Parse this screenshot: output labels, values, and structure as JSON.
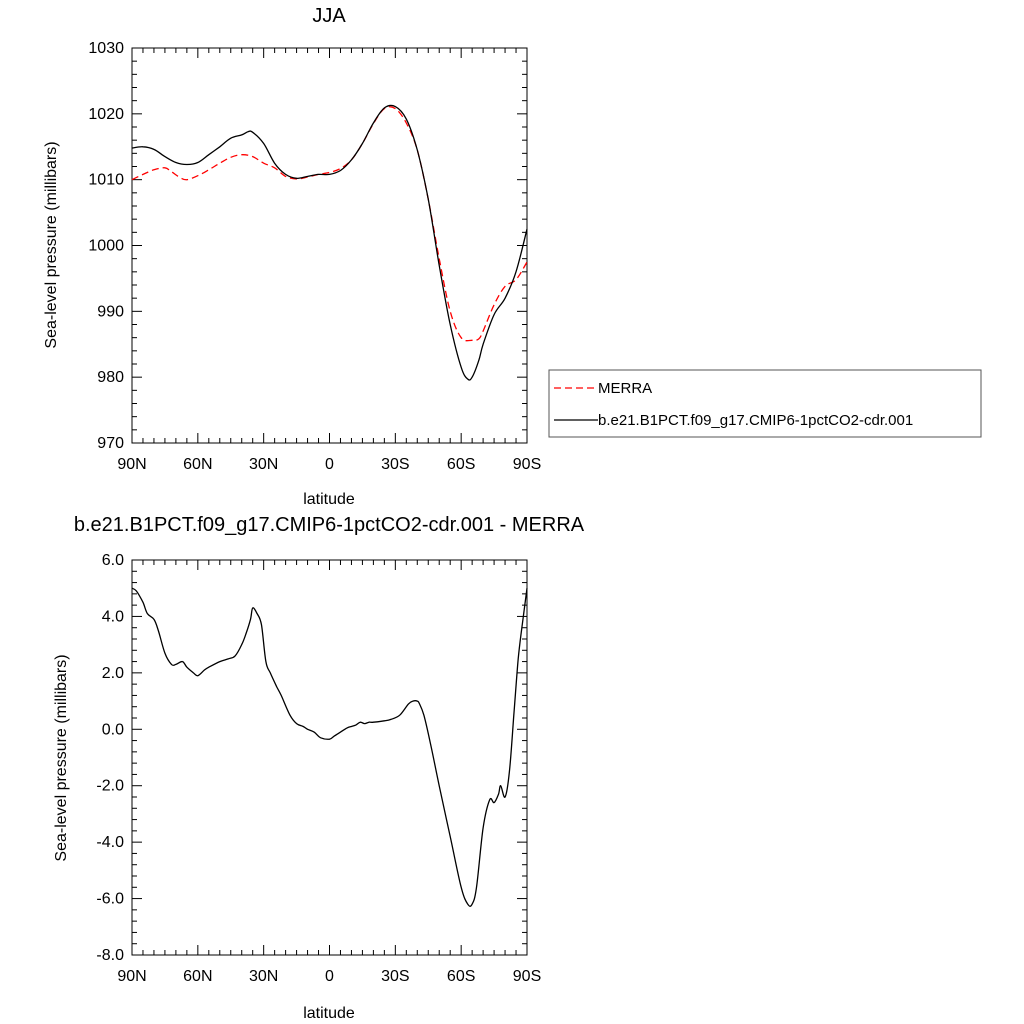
{
  "chart_data": [
    {
      "type": "line",
      "title": "JJA",
      "xlabel": "latitude",
      "ylabel": "Sea-level pressure (millibars)",
      "xlim": [
        -90,
        90
      ],
      "ylim": [
        970,
        1030
      ],
      "x_ticks": [
        -90,
        -60,
        -30,
        0,
        30,
        60,
        90
      ],
      "x_tick_labels": [
        "90N",
        "60N",
        "30N",
        "0",
        "30S",
        "60S",
        "90S"
      ],
      "y_ticks": [
        970,
        980,
        990,
        1000,
        1010,
        1020,
        1030
      ],
      "y_tick_labels": [
        "970",
        "980",
        "990",
        "1000",
        "1010",
        "1020",
        "1030"
      ],
      "legend_position": "right",
      "series": [
        {
          "name": "MERRA",
          "color": "#ff0000",
          "dash": "dashed",
          "x": [
            -90,
            -85,
            -80,
            -75,
            -72,
            -68,
            -65,
            -60,
            -55,
            -50,
            -45,
            -40,
            -35,
            -30,
            -25,
            -20,
            -15,
            -10,
            -5,
            0,
            5,
            10,
            15,
            20,
            25,
            30,
            35,
            40,
            45,
            50,
            55,
            60,
            65,
            68,
            70,
            75,
            80,
            85,
            90
          ],
          "values": [
            1010.0,
            1010.8,
            1011.5,
            1011.8,
            1011.2,
            1010.3,
            1010.0,
            1010.6,
            1011.5,
            1012.5,
            1013.4,
            1013.8,
            1013.5,
            1012.5,
            1011.8,
            1010.5,
            1010.1,
            1010.4,
            1010.8,
            1011.1,
            1011.7,
            1013.0,
            1015.5,
            1018.5,
            1020.8,
            1020.8,
            1018.6,
            1014.5,
            1007.0,
            998.0,
            990.0,
            986.0,
            985.6,
            985.8,
            987.0,
            991.0,
            993.8,
            994.8,
            997.5
          ]
        },
        {
          "name": "b.e21.B1PCT.f09_g17.CMIP6-1pctCO2-cdr.001",
          "color": "#000000",
          "dash": "solid",
          "x": [
            -90,
            -85,
            -80,
            -75,
            -70,
            -65,
            -60,
            -55,
            -50,
            -45,
            -40,
            -37,
            -35,
            -30,
            -25,
            -20,
            -15,
            -10,
            -5,
            0,
            5,
            10,
            15,
            20,
            25,
            30,
            35,
            40,
            45,
            50,
            55,
            60,
            63,
            65,
            68,
            70,
            75,
            80,
            85,
            90
          ],
          "values": [
            1014.8,
            1015.0,
            1014.6,
            1013.5,
            1012.6,
            1012.3,
            1012.6,
            1013.8,
            1015.0,
            1016.3,
            1016.8,
            1017.3,
            1017.2,
            1015.5,
            1012.5,
            1010.8,
            1010.2,
            1010.5,
            1010.8,
            1010.8,
            1011.4,
            1013.0,
            1015.5,
            1018.6,
            1020.9,
            1021.1,
            1019.2,
            1014.5,
            1007.0,
            997.0,
            988.0,
            981.5,
            979.7,
            980.0,
            982.5,
            985.0,
            989.5,
            992.0,
            996.0,
            1002.5
          ]
        }
      ]
    },
    {
      "type": "line",
      "title": "b.e21.B1PCT.f09_g17.CMIP6-1pctCO2-cdr.001 - MERRA",
      "xlabel": "latitude",
      "ylabel": "Sea-level pressure (millibars)",
      "xlim": [
        -90,
        90
      ],
      "ylim": [
        -8,
        6
      ],
      "x_ticks": [
        -90,
        -60,
        -30,
        0,
        30,
        60,
        90
      ],
      "x_tick_labels": [
        "90N",
        "60N",
        "30N",
        "0",
        "30S",
        "60S",
        "90S"
      ],
      "y_ticks": [
        -8,
        -6,
        -4,
        -2,
        0,
        2,
        4,
        6
      ],
      "y_tick_labels": [
        "-8.0",
        "-6.0",
        "-4.0",
        "-2.0",
        "0.0",
        "2.0",
        "4.0",
        "6.0"
      ],
      "series": [
        {
          "color": "#000000",
          "dash": "solid",
          "x": [
            -90,
            -88,
            -85,
            -83,
            -80,
            -78,
            -75,
            -72,
            -70,
            -67,
            -65,
            -62,
            -60,
            -57,
            -55,
            -50,
            -46,
            -43,
            -40,
            -38,
            -36,
            -35,
            -33,
            -31,
            -29,
            -27,
            -24,
            -22,
            -18,
            -15,
            -12,
            -10,
            -7,
            -4,
            0,
            2,
            5,
            8,
            10,
            12,
            14,
            16,
            18,
            20,
            25,
            28,
            32,
            36,
            38,
            40,
            41,
            43,
            46,
            50,
            55,
            60,
            63,
            65,
            67,
            70,
            73,
            75,
            77,
            78,
            80,
            82,
            84,
            86,
            88,
            90
          ],
          "values": [
            5.0,
            4.9,
            4.5,
            4.1,
            3.9,
            3.5,
            2.7,
            2.3,
            2.3,
            2.4,
            2.2,
            2.0,
            1.9,
            2.1,
            2.2,
            2.4,
            2.5,
            2.6,
            3.0,
            3.4,
            3.9,
            4.3,
            4.1,
            3.7,
            2.4,
            2.0,
            1.5,
            1.2,
            0.5,
            0.2,
            0.1,
            0.0,
            -0.1,
            -0.3,
            -0.35,
            -0.25,
            -0.1,
            0.05,
            0.1,
            0.15,
            0.25,
            0.2,
            0.25,
            0.25,
            0.3,
            0.35,
            0.5,
            0.9,
            1.0,
            1.0,
            0.9,
            0.5,
            -0.5,
            -2.0,
            -3.8,
            -5.6,
            -6.2,
            -6.2,
            -5.6,
            -3.5,
            -2.5,
            -2.6,
            -2.3,
            -2.0,
            -2.4,
            -1.5,
            0.5,
            2.5,
            3.8,
            5.0
          ]
        }
      ]
    }
  ]
}
